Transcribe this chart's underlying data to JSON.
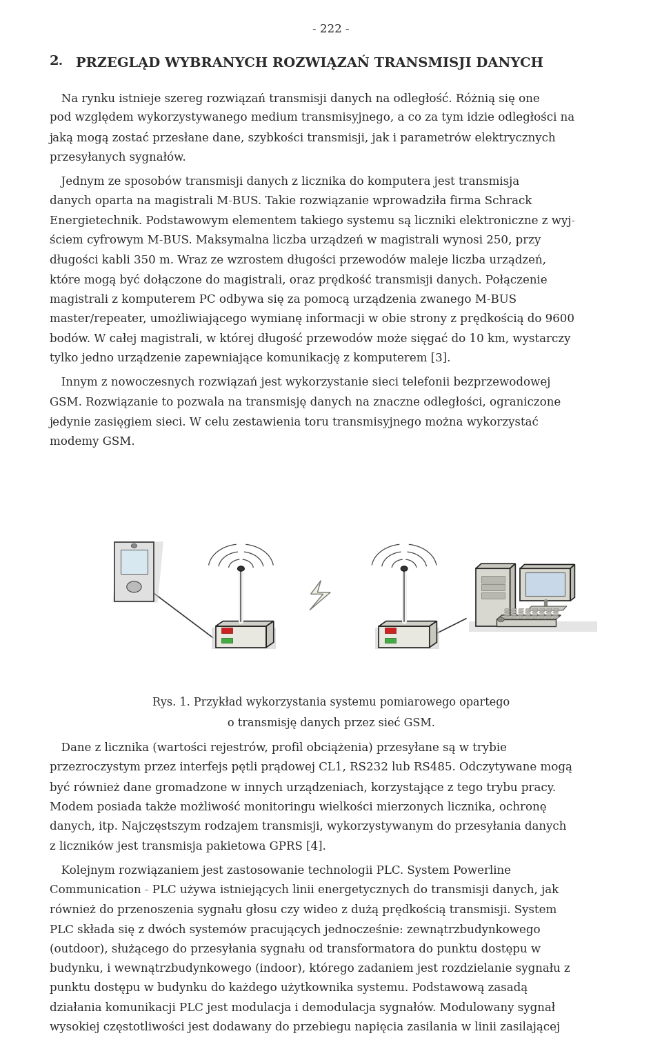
{
  "page_number": "- 222 -",
  "background_color": "#ffffff",
  "text_color": "#2a2a2a",
  "heading_num": "2.",
  "heading_text": "PRZEGLĄD WYBRANYCH ROZWIĄZAŃ TRANSMISJI DANYCH",
  "para1_lines": [
    " Na rynku istnieje szereg rozwiązań transmisji danych na odległość. Różnią się one",
    "pod względem wykorzystywanego medium transmisyjnego, a co za tym idzie odległości na",
    "jaką mogą zostać przesłane dane, szybkości transmisji, jak i parametrów elektrycznych",
    "przesyłanych sygnałów."
  ],
  "para2_lines": [
    " Jednym ze sposobów transmisji danych z licznika do komputera jest transmisja",
    "danych oparta na magistrali M-BUS. Takie rozwiązanie wprowadziła firma Schrack",
    "Energietechnik. Podstawowym elementem takiego systemu są liczniki elektroniczne z wyj-",
    "ściem cyfrowym M-BUS. Maksymalna liczba urządzeń w magistrali wynosi 250, przy",
    "długości kabli 350 m. Wraz ze wzrostem długości przewodów maleje liczba urządzeń,",
    "które mogą być dołączone do magistrali, oraz prędkość transmisji danych. Połączenie",
    "magistrali z komputerem PC odbywa się za pomocą urządzenia zwanego M-BUS",
    "master/repeater, umożliwiającego wymianę informacji w obie strony z prędkością do 9600",
    "bodów. W całej magistrali, w której długość przewodów może sięgać do 10 km, wystarczy",
    "tylko jedno urządzenie zapewniające komunikację z komputerem [3]."
  ],
  "para3_lines": [
    " Innym z nowoczesnych rozwiązań jest wykorzystanie sieci telefonii bezprzewodowej",
    "GSM. Rozwiązanie to pozwala na transmisję danych na znaczne odległości, ograniczone",
    "jedynie zasięgiem sieci. W celu zestawienia toru transmisyjnego można wykorzystać",
    "modemy GSM."
  ],
  "caption_line1": "Rys. 1. Przykład wykorzystania systemu pomiarowego opartego",
  "caption_line2": "o transmisję danych przez sieć GSM.",
  "para4_lines": [
    " Dane z licznika (wartości rejestrów, profil obciążenia) przesyłane są w trybie",
    "przezroczystym przez interfejs pętli prądowej CL1, RS232 lub RS485. Odczytywane mogą",
    "być również dane gromadzone w innych urządzeniach, korzystające z tego trybu pracy.",
    "Modem posiada także możliwość monitoringu wielkości mierzonych licznika, ochronę",
    "danych, itp. Najczęstszym rodzajem transmisji, wykorzystywanym do przesyłania danych",
    "z liczników jest transmisja pakietowa GPRS [4]."
  ],
  "para5_lines": [
    " Kolejnym rozwiązaniem jest zastosowanie technologii PLC. System Powerline",
    "Communication - PLC używa istniejących linii energetycznych do transmisji danych, jak",
    "również do przenoszenia sygnału głosu czy wideo z dużą prędkością transmisji. System",
    "PLC składa się z dwóch systemów pracujących jednocześnie: zewnątrzbudynkowego",
    "(outdoor), służącego do przesyłania sygnału od transformatora do punktu dostępu w",
    "budynku, i wewnątrzbudynkowego (indoor), którego zadaniem jest rozdzielanie sygnału z",
    "punktu dostępu w budynku do każdego użytkownika systemu. Podstawową zasadą",
    "działania komunikacji PLC jest modulacja i demodulacja sygnałów. Modulowany sygnał",
    "wysokiej częstotliwości jest dodawany do przebiegu napięcia zasilania w linii zasilającej"
  ],
  "fs_body": 12.0,
  "fs_heading": 14.0,
  "fs_page_num": 12.0,
  "fs_caption": 11.5,
  "lh": 0.01855,
  "ml": 0.075,
  "mr": 0.925
}
